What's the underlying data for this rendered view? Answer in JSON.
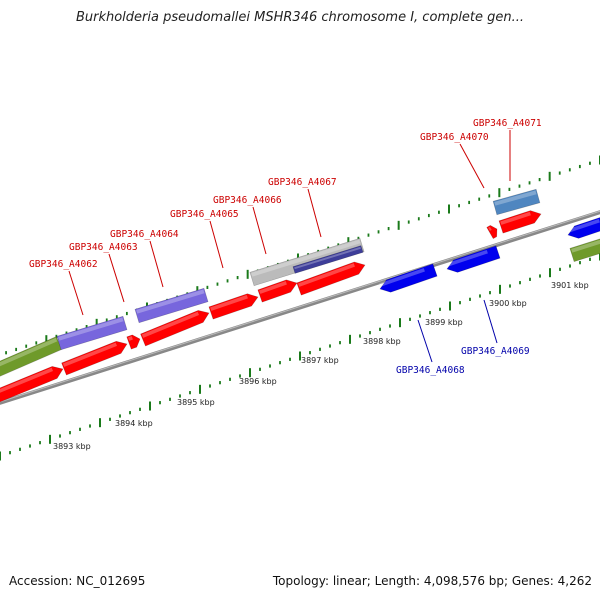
{
  "title": "Burkholderia pseudomallei MSHR346 chromosome I, complete gen...",
  "footer": {
    "accession": "Accession: NC_012695",
    "summary": "Topology: linear; Length: 4,098,576 bp; Genes: 4,262"
  },
  "colors": {
    "forward_label": "#cc0000",
    "reverse_label": "#0000aa",
    "tick": "#1a7a1a",
    "cds_forward": "#ff0000",
    "cds_reverse": "#0000ee",
    "gene_track_purple": "#7766dd",
    "gene_track_green": "#6f9a2a",
    "gene_track_steel": "#4f86c0",
    "gene_track_gray": "#bbbbbb",
    "backbone": "#888888"
  },
  "ruler_labels": [
    "3893 kbp",
    "3894 kbp",
    "3895 kbp",
    "3896 kbp",
    "3897 kbp",
    "3898 kbp",
    "3899 kbp",
    "3900 kbp",
    "3901 kbp"
  ],
  "forward_labels": [
    "GBP346_A4062",
    "GBP346_A4063",
    "GBP346_A4064",
    "GBP346_A4065",
    "GBP346_A4066",
    "GBP346_A4067",
    "GBP346_A4070",
    "GBP346_A4071"
  ],
  "reverse_labels": [
    "GBP346_A4068",
    "GBP346_A4069"
  ]
}
